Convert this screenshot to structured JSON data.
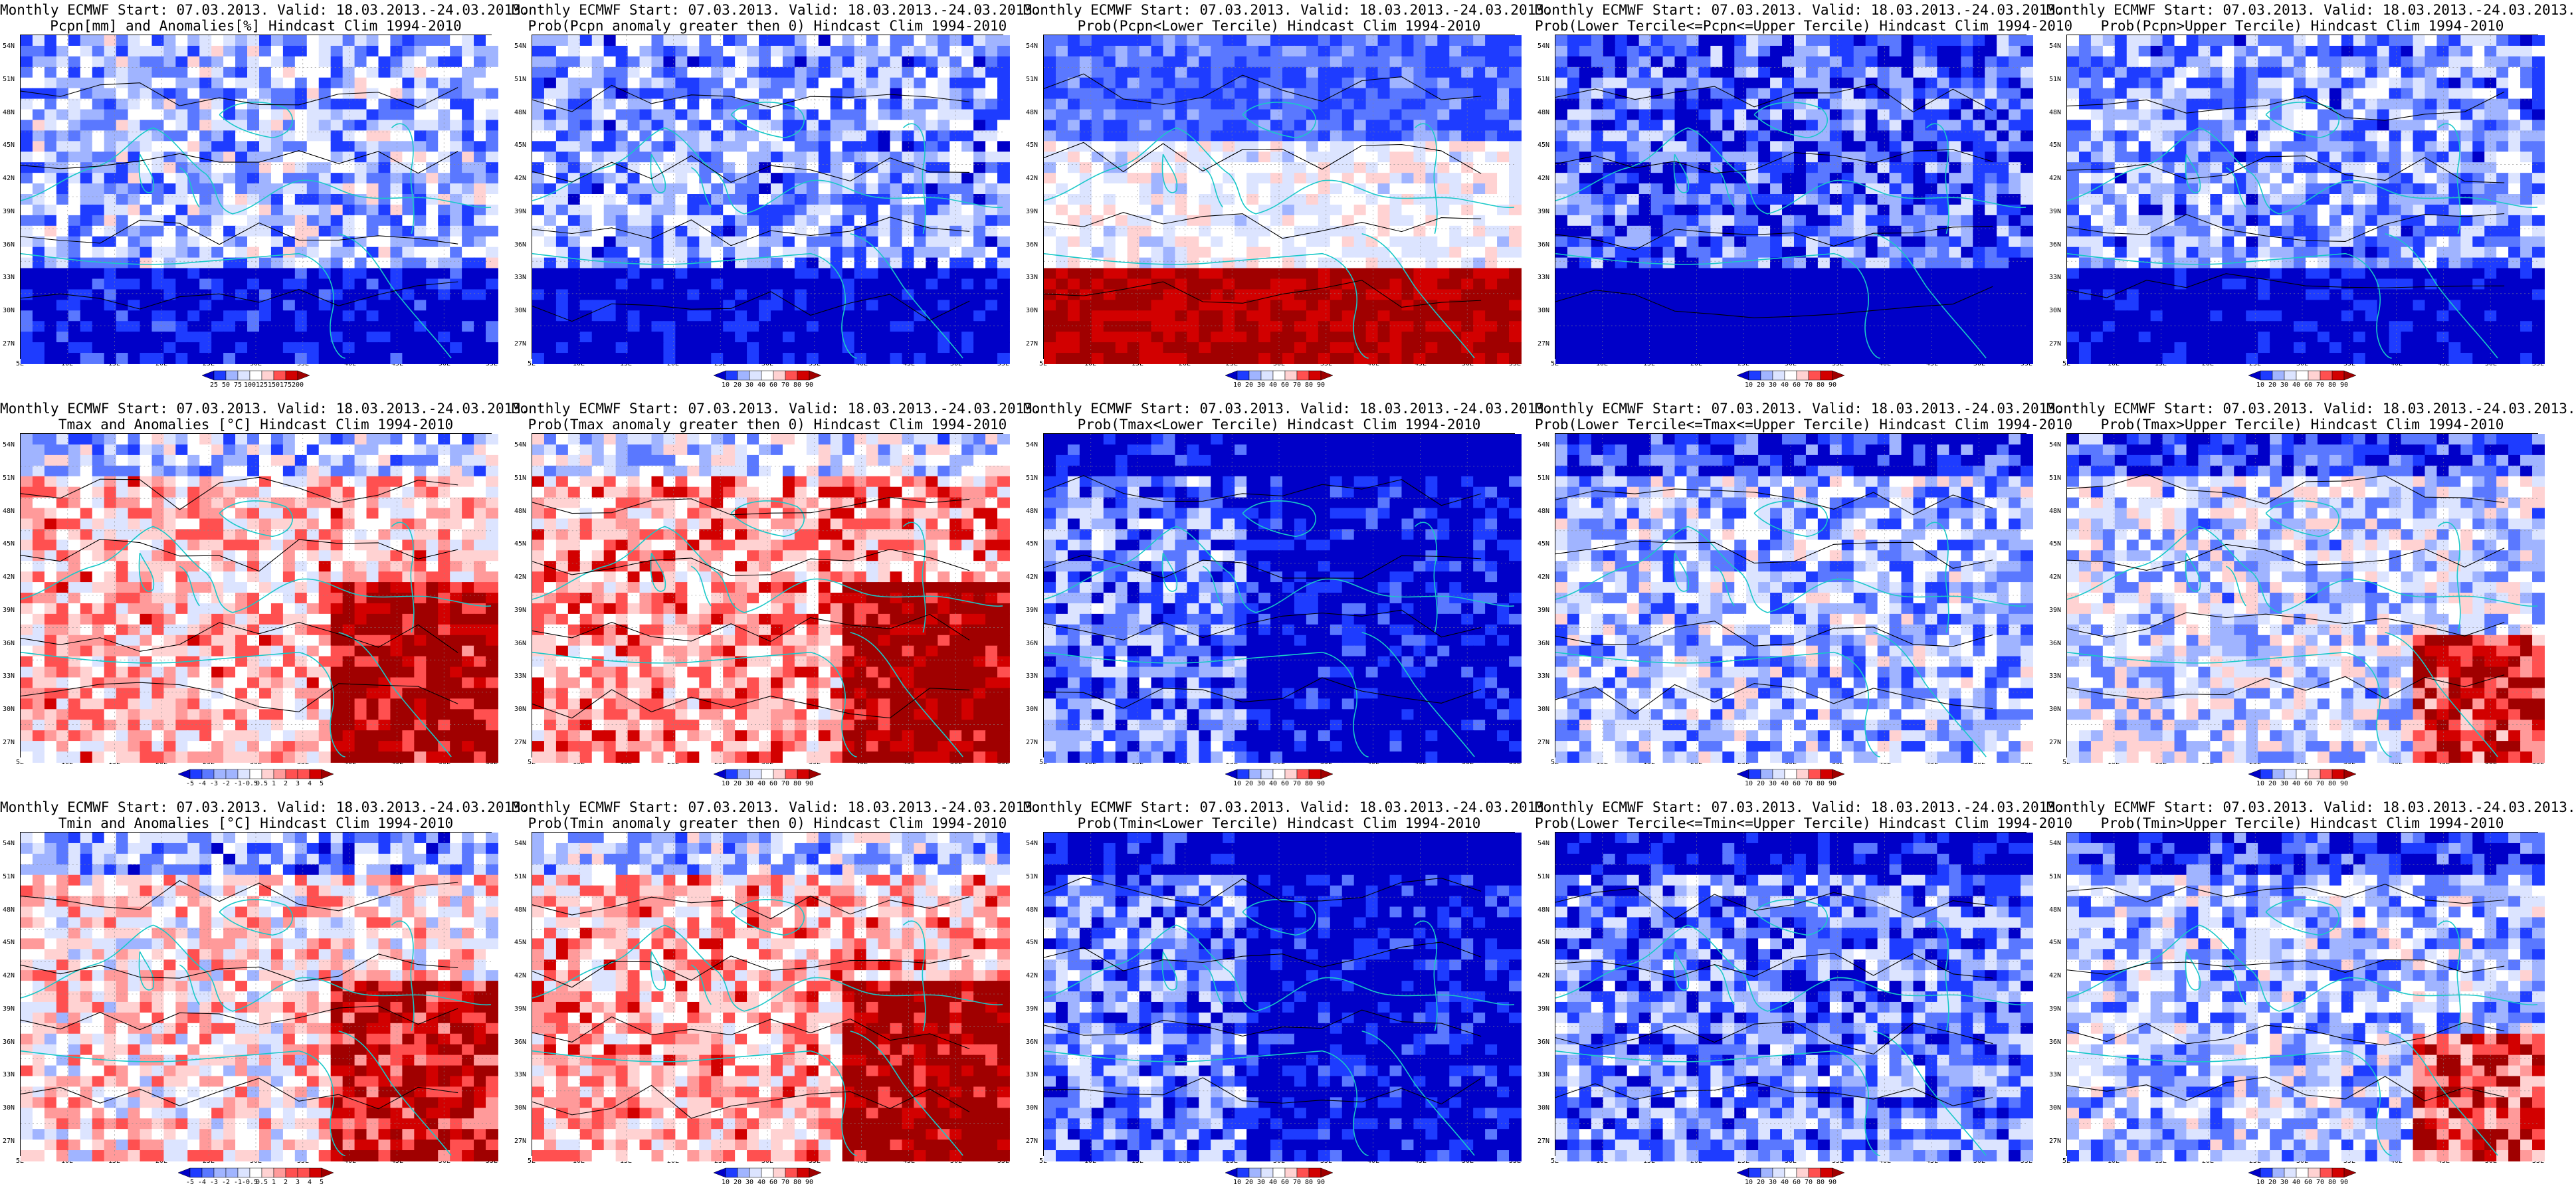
{
  "title_common": "Monthly ECMWF Start: 07.03.2013. Valid: 18.03.2013.-24.03.2013.",
  "lat_labels": [
    "54N",
    "51N",
    "48N",
    "45N",
    "42N",
    "39N",
    "36N",
    "33N",
    "30N",
    "27N"
  ],
  "lon_labels": [
    "5E",
    "10E",
    "15E",
    "20E",
    "25E",
    "30E",
    "35E",
    "40E",
    "45E",
    "50E",
    "55E"
  ],
  "colors": {
    "prob": [
      "#0000c8",
      "#1e3cff",
      "#5a78ff",
      "#a0b4ff",
      "#dce4ff",
      "#ffffff",
      "#ffd2d2",
      "#ff9a9a",
      "#ff5050",
      "#d20000",
      "#a00000"
    ],
    "anom": [
      "#0000c8",
      "#1e3cff",
      "#5a78ff",
      "#a0b4ff",
      "#dce4ff",
      "#ffffff",
      "#ffd2d2",
      "#ff9a9a",
      "#ff5050",
      "#d20000",
      "#a00000"
    ],
    "coast": "#19c8c8",
    "contour": "#000000"
  },
  "panels": [
    {
      "id": "pcpn-anom",
      "title_common": "Monthly ECMWF Start: 07.03.2013. Valid: 18.03.2013.-24.03.2013.",
      "title_line2": "Pcpn[mm] and Anomalies[%] Hindcast Clim 1994-2010",
      "scale": "anom",
      "colorbar_ticks": [
        "25",
        "50",
        "75",
        "100",
        "125",
        "150",
        "175",
        "200"
      ]
    },
    {
      "id": "pcpn-prob-pos",
      "title_common": "Monthly ECMWF Start: 07.03.2013. Valid: 18.03.2013.-24.03.2013.",
      "title_line2": "Prob(Pcpn anomaly greater then 0) Hindcast Clim 1994-2010",
      "scale": "prob",
      "colorbar_ticks": [
        "10",
        "20",
        "30",
        "40",
        "60",
        "70",
        "80",
        "90"
      ]
    },
    {
      "id": "pcpn-prob-lower",
      "title_common": "Monthly ECMWF Start: 07.03.2013. Valid: 18.03.2013.-24.03.2013.",
      "title_line2": "Prob(Pcpn<Lower Tercile) Hindcast Clim 1994-2010",
      "scale": "prob",
      "colorbar_ticks": [
        "10",
        "20",
        "30",
        "40",
        "60",
        "70",
        "80",
        "90"
      ]
    },
    {
      "id": "pcpn-prob-middle",
      "title_common": "Monthly ECMWF Start: 07.03.2013. Valid: 18.03.2013.-24.03.2013.",
      "title_line2": "Prob(Lower Tercile<=Pcpn<=Upper Tercile) Hindcast Clim 1994-2010",
      "scale": "prob",
      "colorbar_ticks": [
        "10",
        "20",
        "30",
        "40",
        "60",
        "70",
        "80",
        "90"
      ]
    },
    {
      "id": "pcpn-prob-upper",
      "title_common": "Monthly ECMWF Start: 07.03.2013. Valid: 18.03.2013.-24.03.2013.",
      "title_line2": "Prob(Pcpn>Upper Tercile) Hindcast Clim 1994-2010",
      "scale": "prob",
      "colorbar_ticks": [
        "10",
        "20",
        "30",
        "40",
        "60",
        "70",
        "80",
        "90"
      ]
    },
    {
      "id": "tmax-anom",
      "title_common": "Monthly ECMWF Start: 07.03.2013. Valid: 18.03.2013.-24.03.2013.",
      "title_line2": "Tmax and Anomalies [°C] Hindcast Clim 1994-2010",
      "scale": "anom",
      "colorbar_ticks": [
        "-5",
        "-4",
        "-3",
        "-2",
        "-1",
        "-0.5",
        "0.5",
        "1",
        "2",
        "3",
        "4",
        "5"
      ]
    },
    {
      "id": "tmax-prob-pos",
      "title_common": "Monthly ECMWF Start: 07.03.2013. Valid: 18.03.2013.-24.03.2013.",
      "title_line2": "Prob(Tmax anomaly greater then 0) Hindcast Clim 1994-2010",
      "scale": "prob",
      "colorbar_ticks": [
        "10",
        "20",
        "30",
        "40",
        "60",
        "70",
        "80",
        "90"
      ]
    },
    {
      "id": "tmax-prob-lower",
      "title_common": "Monthly ECMWF Start: 07.03.2013. Valid: 18.03.2013.-24.03.2013.",
      "title_line2": "Prob(Tmax<Lower Tercile) Hindcast Clim 1994-2010",
      "scale": "prob",
      "colorbar_ticks": [
        "10",
        "20",
        "30",
        "40",
        "60",
        "70",
        "80",
        "90"
      ]
    },
    {
      "id": "tmax-prob-middle",
      "title_common": "Monthly ECMWF Start: 07.03.2013. Valid: 18.03.2013.-24.03.2013.",
      "title_line2": "Prob(Lower Tercile<=Tmax<=Upper Tercile) Hindcast Clim 1994-2010",
      "scale": "prob",
      "colorbar_ticks": [
        "10",
        "20",
        "30",
        "40",
        "60",
        "70",
        "80",
        "90"
      ]
    },
    {
      "id": "tmax-prob-upper",
      "title_common": "Monthly ECMWF Start: 07.03.2013. Valid: 18.03.2013.-24.03.2013.",
      "title_line2": "Prob(Tmax>Upper Tercile) Hindcast Clim 1994-2010",
      "scale": "prob",
      "colorbar_ticks": [
        "10",
        "20",
        "30",
        "40",
        "60",
        "70",
        "80",
        "90"
      ]
    },
    {
      "id": "tmin-anom",
      "title_common": "Monthly ECMWF Start: 07.03.2013. Valid: 18.03.2013.-24.03.2013.",
      "title_line2": "Tmin and Anomalies [°C] Hindcast Clim 1994-2010",
      "scale": "anom",
      "colorbar_ticks": [
        "-5",
        "-4",
        "-3",
        "-2",
        "-1",
        "-0.5",
        "0.5",
        "1",
        "2",
        "3",
        "4",
        "5"
      ]
    },
    {
      "id": "tmin-prob-pos",
      "title_common": "Monthly ECMWF Start: 07.03.2013. Valid: 18.03.2013.-24.03.2013.",
      "title_line2": "Prob(Tmin anomaly greater then 0) Hindcast Clim 1994-2010",
      "scale": "prob",
      "colorbar_ticks": [
        "10",
        "20",
        "30",
        "40",
        "60",
        "70",
        "80",
        "90"
      ]
    },
    {
      "id": "tmin-prob-lower",
      "title_common": "Monthly ECMWF Start: 07.03.2013. Valid: 18.03.2013.-24.03.2013.",
      "title_line2": "Prob(Tmin<Lower Tercile) Hindcast Clim 1994-2010",
      "scale": "prob",
      "colorbar_ticks": [
        "10",
        "20",
        "30",
        "40",
        "60",
        "70",
        "80",
        "90"
      ]
    },
    {
      "id": "tmin-prob-middle",
      "title_common": "Monthly ECMWF Start: 07.03.2013. Valid: 18.03.2013.-24.03.2013.",
      "title_line2": "Prob(Lower Tercile<=Tmin<=Upper Tercile) Hindcast Clim 1994-2010",
      "scale": "prob",
      "colorbar_ticks": [
        "10",
        "20",
        "30",
        "40",
        "60",
        "70",
        "80",
        "90"
      ]
    },
    {
      "id": "tmin-prob-upper",
      "title_common": "Monthly ECMWF Start: 07.03.2013. Valid: 18.03.2013.-24.03.2013.",
      "title_line2": "Prob(Tmin>Upper Tercile) Hindcast Clim 1994-2010",
      "scale": "prob",
      "colorbar_ticks": [
        "10",
        "20",
        "30",
        "40",
        "60",
        "70",
        "80",
        "90"
      ]
    }
  ]
}
